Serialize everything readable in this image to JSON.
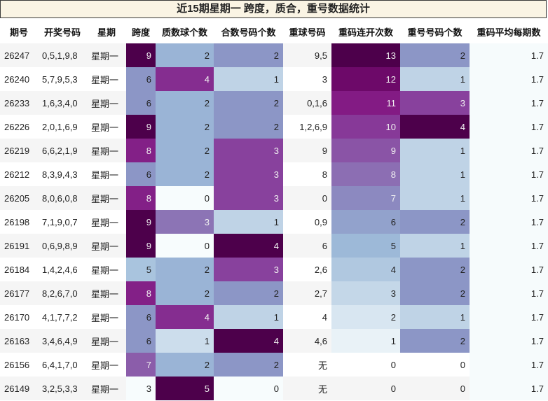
{
  "title": "近15期星期一 跨度，质合，重号数据统计",
  "columns": [
    "期号",
    "开奖号码",
    "星期",
    "跨度",
    "质数球个数",
    "合数号码个数",
    "重球号码",
    "重码连开次数",
    "重号号码个数",
    "重码平均每期数"
  ],
  "rows": [
    [
      "26247",
      "0,5,1,9,8",
      "星期一",
      "9",
      "2",
      "2",
      "9,5",
      "13",
      "2",
      "1.7"
    ],
    [
      "26240",
      "5,7,9,5,3",
      "星期一",
      "6",
      "4",
      "1",
      "3",
      "12",
      "1",
      "1.7"
    ],
    [
      "26233",
      "1,6,3,4,0",
      "星期一",
      "6",
      "2",
      "2",
      "0,1,6",
      "11",
      "3",
      "1.7"
    ],
    [
      "26226",
      "2,0,1,6,9",
      "星期一",
      "9",
      "2",
      "2",
      "1,2,6,9",
      "10",
      "4",
      "1.7"
    ],
    [
      "26219",
      "6,6,2,1,9",
      "星期一",
      "8",
      "2",
      "3",
      "9",
      "9",
      "1",
      "1.7"
    ],
    [
      "26212",
      "8,3,9,4,3",
      "星期一",
      "6",
      "2",
      "3",
      "8",
      "8",
      "1",
      "1.7"
    ],
    [
      "26205",
      "8,0,6,0,8",
      "星期一",
      "8",
      "0",
      "3",
      "0",
      "7",
      "1",
      "1.7"
    ],
    [
      "26198",
      "7,1,9,0,7",
      "星期一",
      "9",
      "3",
      "1",
      "0,9",
      "6",
      "2",
      "1.7"
    ],
    [
      "26191",
      "0,6,9,8,9",
      "星期一",
      "9",
      "0",
      "4",
      "6",
      "5",
      "1",
      "1.7"
    ],
    [
      "26184",
      "1,4,2,4,6",
      "星期一",
      "5",
      "2",
      "3",
      "2,6",
      "4",
      "2",
      "1.7"
    ],
    [
      "26177",
      "8,2,6,7,0",
      "星期一",
      "8",
      "2",
      "2",
      "2,7",
      "3",
      "2",
      "1.7"
    ],
    [
      "26170",
      "4,1,7,7,2",
      "星期一",
      "6",
      "4",
      "1",
      "4",
      "2",
      "1",
      "1.7"
    ],
    [
      "26163",
      "3,4,6,4,9",
      "星期一",
      "6",
      "1",
      "4",
      "4,6",
      "1",
      "2",
      "1.7"
    ],
    [
      "26156",
      "6,4,1,7,0",
      "星期一",
      "7",
      "2",
      "2",
      "无",
      "0",
      "0",
      "1.7"
    ],
    [
      "26149",
      "3,2,5,3,3",
      "星期一",
      "3",
      "5",
      "0",
      "无",
      "0",
      "0",
      "1.7"
    ]
  ]
}
